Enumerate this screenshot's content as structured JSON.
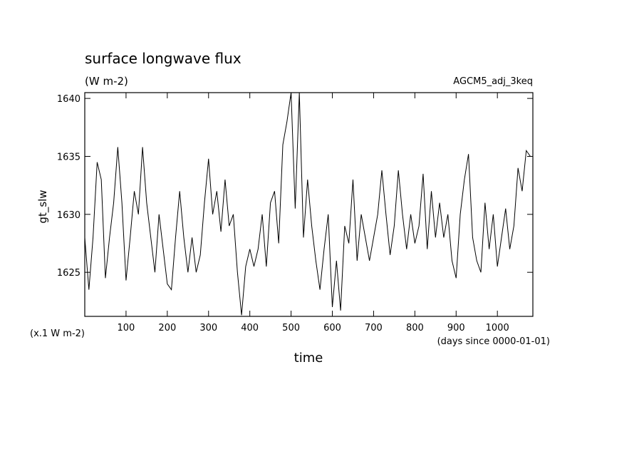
{
  "chart_data": {
    "type": "line",
    "title": "surface longwave flux",
    "subtitle": "(W m-2)",
    "experiment": "AGCM5_adj_3keq",
    "y_label": "gt_slw",
    "y_units": "(x.1 W m-2)",
    "x_label": "time",
    "x_units": "(days since 0000-01-01)",
    "color": "#000000",
    "grid": false,
    "x": [
      0,
      10,
      20,
      30,
      40,
      50,
      60,
      70,
      80,
      90,
      100,
      110,
      120,
      130,
      140,
      150,
      160,
      170,
      180,
      190,
      200,
      210,
      220,
      230,
      240,
      250,
      260,
      270,
      280,
      290,
      300,
      310,
      320,
      330,
      340,
      350,
      360,
      370,
      380,
      390,
      400,
      410,
      420,
      430,
      440,
      450,
      460,
      470,
      480,
      490,
      500,
      510,
      520,
      530,
      540,
      550,
      560,
      570,
      580,
      590,
      600,
      610,
      620,
      630,
      640,
      650,
      660,
      670,
      680,
      690,
      700,
      710,
      720,
      730,
      740,
      750,
      760,
      770,
      780,
      790,
      800,
      810,
      820,
      830,
      840,
      850,
      860,
      870,
      880,
      890,
      900,
      910,
      920,
      930,
      940,
      950,
      960,
      970,
      980,
      990,
      1000,
      1010,
      1020,
      1030,
      1040,
      1050,
      1060,
      1070,
      1080
    ],
    "series": [
      {
        "name": "gt_slw",
        "values": [
          1628,
          1623.5,
          1628,
          1634.5,
          1633,
          1624.5,
          1628,
          1631,
          1635.8,
          1631,
          1624.3,
          1628,
          1632,
          1630,
          1635.8,
          1631,
          1628,
          1625,
          1630,
          1627,
          1624,
          1623.5,
          1628,
          1632,
          1628,
          1625,
          1628,
          1625,
          1626.5,
          1631,
          1634.8,
          1630,
          1632,
          1628.5,
          1633,
          1629,
          1630,
          1625,
          1621.3,
          1625.5,
          1627,
          1625.5,
          1627,
          1630,
          1625.5,
          1631,
          1632,
          1627.5,
          1636,
          1638,
          1640.5,
          1630.5,
          1640.5,
          1628,
          1633,
          1629,
          1626,
          1623.5,
          1627,
          1630,
          1622,
          1626,
          1621.7,
          1629,
          1627.5,
          1633,
          1626,
          1630,
          1628,
          1626,
          1628,
          1630,
          1633.8,
          1630,
          1626.5,
          1629,
          1633.8,
          1630,
          1627,
          1630,
          1627.5,
          1629,
          1633.5,
          1627,
          1632,
          1628,
          1631,
          1628,
          1630,
          1626,
          1624.5,
          1630,
          1633,
          1635.2,
          1628,
          1626,
          1625,
          1631,
          1627,
          1630,
          1625.5,
          1628,
          1630.5,
          1627,
          1629,
          1634,
          1632,
          1635.5,
          1635
        ]
      }
    ],
    "xlim": [
      0,
      1086
    ],
    "ylim": [
      1621.2,
      1640.5
    ],
    "xticks": [
      100,
      200,
      300,
      400,
      500,
      600,
      700,
      800,
      900,
      1000
    ],
    "yticks": [
      1625,
      1630,
      1635,
      1640
    ]
  }
}
